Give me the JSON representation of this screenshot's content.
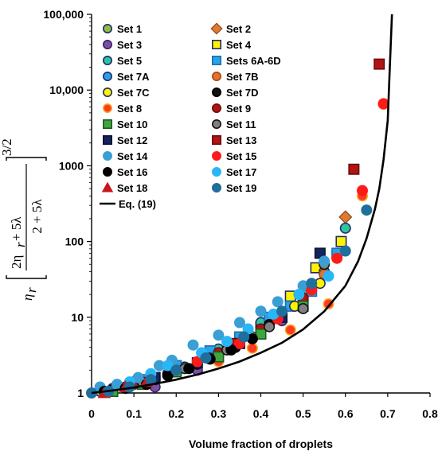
{
  "chart_data": {
    "type": "scatter",
    "xlabel": "Volume fraction of droplets",
    "ylabel": {
      "prefix": "η",
      "prefix_sub": "r",
      "numerator": "2η",
      "numerator_sub": "r",
      "numerator_rest": " + 5λ",
      "denominator": "2 + 5λ",
      "exponent": "3/2"
    },
    "xlim": [
      0,
      0.8
    ],
    "ylim": [
      1,
      100000
    ],
    "yscale": "log",
    "grid": false,
    "legend_position": "top-left",
    "x_ticks": [
      "0",
      "0.1",
      "0.2",
      "0.3",
      "0.4",
      "0.5",
      "0.6",
      "0.7",
      "0.8"
    ],
    "x_tick_values": [
      0,
      0.1,
      0.2,
      0.3,
      0.4,
      0.5,
      0.6,
      0.7,
      0.8
    ],
    "y_ticks": [
      "1",
      "10",
      "100",
      "1000",
      "10,000",
      "100,000"
    ],
    "y_tick_values": [
      1,
      10,
      100,
      1000,
      10000,
      100000
    ],
    "series": [
      {
        "name": "Set 1",
        "marker": "circle",
        "color": "#8FBF3F",
        "edge": "#1f2a6b",
        "points": [
          [
            0.02,
            1.05
          ],
          [
            0.08,
            1.2
          ],
          [
            0.15,
            1.6
          ],
          [
            0.22,
            2.2
          ],
          [
            0.3,
            3.2
          ],
          [
            0.38,
            5.2
          ],
          [
            0.45,
            9.5
          ],
          [
            0.5,
            17
          ]
        ]
      },
      {
        "name": "Set 2",
        "marker": "diamond",
        "color": "#E07A2E",
        "edge": "#8a4a1a",
        "points": [
          [
            0.6,
            210
          ]
        ]
      },
      {
        "name": "Set 3",
        "marker": "circle",
        "color": "#7B4FA8",
        "edge": "#3a2060",
        "points": [
          [
            0.05,
            1.1
          ],
          [
            0.15,
            1.2
          ],
          [
            0.25,
            2.0
          ],
          [
            0.35,
            4.5
          ],
          [
            0.45,
            9
          ]
        ]
      },
      {
        "name": "Set 4",
        "marker": "square",
        "color": "#FFF200",
        "edge": "#1f2a6b",
        "points": [
          [
            0.2,
            2.0
          ],
          [
            0.3,
            3.5
          ],
          [
            0.4,
            7.5
          ],
          [
            0.47,
            19
          ],
          [
            0.53,
            45
          ],
          [
            0.59,
            100
          ]
        ]
      },
      {
        "name": "Set 5",
        "marker": "circle",
        "color": "#2EC4A0",
        "edge": "#1f2a6b",
        "points": [
          [
            0.1,
            1.4
          ],
          [
            0.2,
            2.1
          ],
          [
            0.3,
            3.8
          ],
          [
            0.4,
            8.5
          ],
          [
            0.5,
            20
          ],
          [
            0.6,
            150
          ]
        ]
      },
      {
        "name": "Sets 6A-6D",
        "marker": "square",
        "color": "#29A3E8",
        "edge": "#1a6fb0",
        "points": [
          [
            0.12,
            1.5
          ],
          [
            0.2,
            2.3
          ],
          [
            0.28,
            3.6
          ],
          [
            0.35,
            5.5
          ],
          [
            0.42,
            10
          ],
          [
            0.47,
            14
          ],
          [
            0.52,
            22
          ],
          [
            0.58,
            70
          ]
        ]
      },
      {
        "name": "Set 7A",
        "marker": "circle",
        "color": "#29A3E8",
        "edge": "#1f2a6b",
        "points": [
          [
            0.05,
            1.15
          ],
          [
            0.1,
            1.4
          ],
          [
            0.2,
            2.0
          ],
          [
            0.3,
            3.2
          ],
          [
            0.4,
            6.5
          ],
          [
            0.5,
            16
          ],
          [
            0.55,
            40
          ]
        ]
      },
      {
        "name": "Set 7B",
        "marker": "circle",
        "color": "#E8702A",
        "edge": "#a04a12",
        "points": [
          [
            0.55,
            37
          ]
        ]
      },
      {
        "name": "Set 7C",
        "marker": "circle",
        "color": "#FFF200",
        "edge": "#1f2a6b",
        "points": [
          [
            0.08,
            1.2
          ],
          [
            0.18,
            1.8
          ],
          [
            0.28,
            2.9
          ],
          [
            0.38,
            5.5
          ],
          [
            0.48,
            14
          ],
          [
            0.54,
            28
          ]
        ]
      },
      {
        "name": "Set 7D",
        "marker": "circle",
        "color": "#111111",
        "edge": "#000000",
        "points": [
          [
            0.05,
            1.1
          ],
          [
            0.15,
            1.5
          ],
          [
            0.25,
            2.4
          ],
          [
            0.34,
            4.0
          ],
          [
            0.42,
            8
          ]
        ]
      },
      {
        "name": "Set 8",
        "marker": "circle",
        "color": "#FF3B1F",
        "edge": "#F5A623",
        "points": [
          [
            0.3,
            2.6
          ],
          [
            0.38,
            3.9
          ],
          [
            0.47,
            6.8
          ],
          [
            0.56,
            15
          ],
          [
            0.64,
            400
          ],
          [
            0.69,
            6500
          ]
        ]
      },
      {
        "name": "Set 9",
        "marker": "circle",
        "color": "#B01414",
        "edge": "#700a0a",
        "points": [
          [
            0.1,
            1.3
          ],
          [
            0.2,
            2.0
          ],
          [
            0.3,
            3.4
          ],
          [
            0.4,
            7.0
          ],
          [
            0.5,
            18
          ]
        ]
      },
      {
        "name": "Set 10",
        "marker": "square",
        "color": "#3FA63F",
        "edge": "#1f5a1f",
        "points": [
          [
            0.05,
            1.05
          ],
          [
            0.12,
            1.3
          ],
          [
            0.2,
            1.9
          ],
          [
            0.3,
            3.0
          ],
          [
            0.4,
            6.0
          ],
          [
            0.5,
            14
          ]
        ]
      },
      {
        "name": "Set 11",
        "marker": "circle",
        "color": "#808080",
        "edge": "#111111",
        "points": [
          [
            0.12,
            1.4
          ],
          [
            0.22,
            2.1
          ],
          [
            0.32,
            3.7
          ],
          [
            0.42,
            7.5
          ],
          [
            0.5,
            13
          ],
          [
            0.55,
            50
          ]
        ]
      },
      {
        "name": "Set 12",
        "marker": "square",
        "color": "#14235C",
        "edge": "#0a1230",
        "points": [
          [
            0.15,
            1.6
          ],
          [
            0.25,
            2.5
          ],
          [
            0.35,
            4.5
          ],
          [
            0.45,
            10
          ],
          [
            0.54,
            70
          ]
        ]
      },
      {
        "name": "Set 13",
        "marker": "square",
        "color": "#B01414",
        "edge": "#700a0a",
        "points": [
          [
            0.33,
            4.5
          ],
          [
            0.62,
            900
          ],
          [
            0.68,
            22000
          ]
        ]
      },
      {
        "name": "Set 14",
        "marker": "circle",
        "color": "#3A9FD5",
        "edge": "#3A9FD5",
        "points": [
          [
            0.02,
            1.2
          ],
          [
            0.06,
            1.3
          ],
          [
            0.11,
            1.6
          ],
          [
            0.16,
            2.3
          ],
          [
            0.19,
            2.7
          ],
          [
            0.24,
            4.3
          ],
          [
            0.3,
            5.8
          ],
          [
            0.35,
            8.5
          ],
          [
            0.4,
            12
          ],
          [
            0.44,
            16
          ],
          [
            0.5,
            26
          ],
          [
            0.55,
            55
          ]
        ]
      },
      {
        "name": "Set 15",
        "marker": "circle",
        "color": "#FF1A1A",
        "edge": "#FF1A1A",
        "points": [
          [
            0.25,
            2.6
          ],
          [
            0.35,
            4.5
          ],
          [
            0.44,
            9.5
          ],
          [
            0.52,
            23
          ],
          [
            0.58,
            60
          ],
          [
            0.64,
            470
          ],
          [
            0.69,
            6600
          ]
        ]
      },
      {
        "name": "Set 16",
        "marker": "circle",
        "color": "#000000",
        "edge": "#000000",
        "points": [
          [
            0.03,
            1.05
          ],
          [
            0.08,
            1.15
          ],
          [
            0.13,
            1.3
          ],
          [
            0.18,
            1.7
          ],
          [
            0.23,
            2.1
          ],
          [
            0.28,
            2.8
          ],
          [
            0.33,
            3.7
          ],
          [
            0.38,
            5.2
          ]
        ]
      },
      {
        "name": "Set 17",
        "marker": "circle",
        "color": "#29B6F6",
        "edge": "#29B6F6",
        "points": [
          [
            0.09,
            1.4
          ],
          [
            0.14,
            1.8
          ],
          [
            0.18,
            2.3
          ],
          [
            0.26,
            3.4
          ],
          [
            0.32,
            4.8
          ],
          [
            0.37,
            7
          ],
          [
            0.43,
            11
          ],
          [
            0.49,
            20
          ],
          [
            0.56,
            35
          ]
        ]
      },
      {
        "name": "Set 18",
        "marker": "triangle",
        "color": "#C8161D",
        "edge": "#C8161D",
        "points": [
          [
            0.03,
            1.0
          ],
          [
            0.08,
            1.2
          ],
          [
            0.13,
            1.4
          ]
        ]
      },
      {
        "name": "Set 19",
        "marker": "circle",
        "color": "#1F6E9C",
        "edge": "#1F6E9C",
        "points": [
          [
            0.0,
            1.0
          ],
          [
            0.04,
            1.05
          ],
          [
            0.09,
            1.2
          ],
          [
            0.14,
            1.5
          ],
          [
            0.2,
            2.0
          ],
          [
            0.27,
            2.9
          ],
          [
            0.36,
            5.5
          ],
          [
            0.45,
            12
          ],
          [
            0.52,
            28
          ],
          [
            0.6,
            75
          ],
          [
            0.65,
            260
          ]
        ]
      }
    ],
    "curve": {
      "name": "Eq. (19)",
      "color": "#000000",
      "points": [
        [
          0.0,
          1.0
        ],
        [
          0.05,
          1.08
        ],
        [
          0.1,
          1.18
        ],
        [
          0.15,
          1.32
        ],
        [
          0.2,
          1.5
        ],
        [
          0.25,
          1.75
        ],
        [
          0.3,
          2.1
        ],
        [
          0.35,
          2.6
        ],
        [
          0.4,
          3.4
        ],
        [
          0.45,
          4.6
        ],
        [
          0.5,
          6.9
        ],
        [
          0.55,
          12
        ],
        [
          0.6,
          26
        ],
        [
          0.63,
          55
        ],
        [
          0.65,
          110
        ],
        [
          0.67,
          270
        ],
        [
          0.68,
          500
        ],
        [
          0.69,
          1200
        ],
        [
          0.7,
          4000
        ],
        [
          0.705,
          20000
        ],
        [
          0.71,
          100000
        ]
      ]
    }
  }
}
